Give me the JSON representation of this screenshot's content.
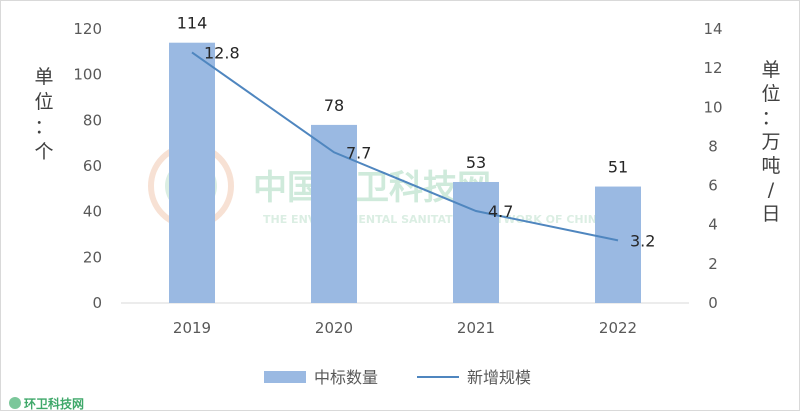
{
  "chart_data": {
    "type": "bar+line",
    "categories": [
      "2019",
      "2020",
      "2021",
      "2022"
    ],
    "series": [
      {
        "name": "中标数量",
        "type": "bar",
        "axis": "left",
        "values": [
          114,
          78,
          53,
          51
        ],
        "color": "#9ab9e2"
      },
      {
        "name": "新增规模",
        "type": "line",
        "axis": "right",
        "values": [
          12.8,
          7.7,
          4.7,
          3.2
        ],
        "color": "#4f86bf"
      }
    ],
    "bar_labels": [
      "114",
      "78",
      "53",
      "51"
    ],
    "line_labels": [
      "12.8",
      "7.7",
      "4.7",
      "3.2"
    ],
    "y_left": {
      "label_chars": [
        "单",
        "位",
        "：",
        "个"
      ],
      "ylim": [
        0,
        120
      ],
      "ticks": [
        "0",
        "20",
        "40",
        "60",
        "80",
        "100",
        "120"
      ]
    },
    "y_right": {
      "label_chars": [
        "单",
        "位",
        "：",
        "万",
        "吨",
        "/",
        "日"
      ],
      "ylim": [
        0,
        14
      ],
      "ticks": [
        "0",
        "2",
        "4",
        "6",
        "8",
        "10",
        "12",
        "14"
      ]
    },
    "legend_position": "bottom",
    "grid": false
  },
  "watermark": {
    "text": "中国环卫科技网",
    "subtext": "THE ENVIRONMENTAL SANITATION NETWORK OF CHINA",
    "corner_text": "环卫科技网"
  }
}
